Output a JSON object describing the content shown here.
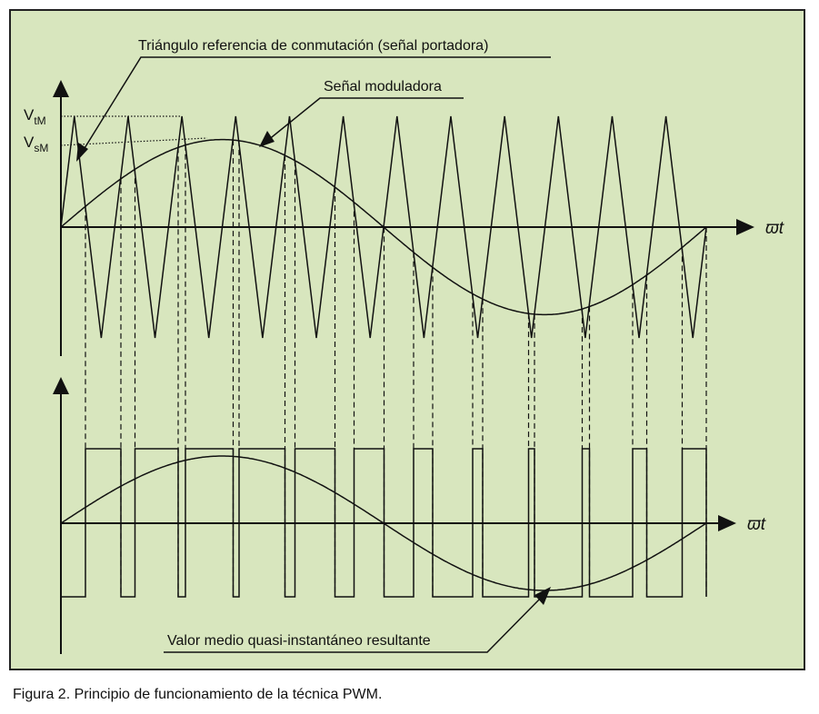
{
  "labels": {
    "carrier": "Triángulo referencia de conmutación (señal portadora)",
    "modulating": "Señal moduladora",
    "result": "Valor medio quasi-instantáneo resultante",
    "omega_t": "ϖt",
    "vtm_main": "V",
    "vtm_sub": "tM",
    "vsm_main": "V",
    "vsm_sub": "sM"
  },
  "caption": "Figura 2. Principio de funcionamiento de la técnica PWM.",
  "colors": {
    "panel_bg": "#d8e6be",
    "line": "#111111"
  },
  "signal": {
    "carrier_cycles": 12,
    "carrier_peak_ratio": 1,
    "modulating_peak_ratio": 0.79,
    "modulating_cycles": 1
  }
}
